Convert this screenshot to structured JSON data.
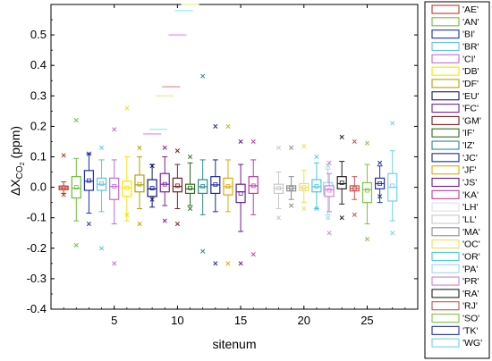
{
  "chart_data": {
    "type": "box",
    "xlabel": "sitenum",
    "ylabel_main": "ΔX",
    "ylabel_sub": "CO",
    "ylabel_subsub": "2",
    "ylabel_unit": " (ppm)",
    "xlim": [
      0,
      29
    ],
    "ylim": [
      -0.4,
      0.6
    ],
    "xticks": [
      5,
      10,
      15,
      20,
      25
    ],
    "yticks": [
      -0.4,
      -0.3,
      -0.2,
      -0.1,
      0.0,
      0.1,
      0.2,
      0.3,
      0.4,
      0.5
    ],
    "ytick_labels": [
      "-0.4",
      "-0.3",
      "-0.2",
      "-0.1",
      "0.0",
      "0.1",
      "0.2",
      "0.3",
      "0.4",
      "0.5"
    ],
    "series": [
      {
        "name": "'AE'",
        "color": "#c0392b",
        "site": 1,
        "q1": -0.008,
        "median": -0.002,
        "q3": 0.004,
        "wlow": -0.02,
        "whigh": 0.018,
        "mean": -0.001,
        "outliers": [
          0.105,
          -0.025
        ]
      },
      {
        "name": "'AN'",
        "color": "#6abf3b",
        "site": 2,
        "q1": -0.035,
        "median": -0.003,
        "q3": 0.035,
        "wlow": -0.11,
        "whigh": 0.095,
        "mean": 0.0,
        "outliers": [
          0.22,
          -0.19
        ]
      },
      {
        "name": "'BI'",
        "color": "#1f2fb5",
        "site": 3,
        "q1": -0.01,
        "median": 0.02,
        "q3": 0.055,
        "wlow": -0.085,
        "whigh": 0.11,
        "mean": 0.022,
        "outliers": [
          0.11,
          -0.12
        ]
      },
      {
        "name": "'BR'",
        "color": "#5fc3e8",
        "site": 4,
        "q1": -0.01,
        "median": 0.01,
        "q3": 0.03,
        "wlow": -0.08,
        "whigh": 0.09,
        "mean": 0.012,
        "outliers": [
          0.13,
          -0.2
        ]
      },
      {
        "name": "'CI'",
        "color": "#c86ad8",
        "site": 5,
        "q1": -0.04,
        "median": 0.003,
        "q3": 0.03,
        "wlow": -0.12,
        "whigh": 0.09,
        "mean": 0.003,
        "outliers": [
          0.19,
          -0.25
        ]
      },
      {
        "name": "'DB'",
        "color": "#f3e600",
        "site": 6,
        "q1": -0.03,
        "median": -0.002,
        "q3": 0.02,
        "wlow": -0.11,
        "whigh": 0.1,
        "mean": -0.002,
        "outliers": [
          0.26,
          -0.09
        ]
      },
      {
        "name": "'DF'",
        "color": "#b8a000",
        "site": 7,
        "q1": -0.015,
        "median": 0.008,
        "q3": 0.04,
        "wlow": -0.07,
        "whigh": 0.1,
        "mean": 0.01,
        "outliers": [
          0.13,
          -0.12
        ]
      },
      {
        "name": "'EU'",
        "color": "#111a7a",
        "site": 8,
        "q1": -0.03,
        "median": -0.005,
        "q3": 0.025,
        "wlow": -0.065,
        "whigh": 0.075,
        "mean": -0.003,
        "outliers": [
          0.07,
          -0.04
        ]
      },
      {
        "name": "'FC'",
        "color": "#7e1f9c",
        "site": 9,
        "q1": -0.015,
        "median": 0.01,
        "q3": 0.045,
        "wlow": -0.06,
        "whigh": 0.1,
        "mean": 0.01,
        "outliers": [
          0.13,
          -0.11
        ]
      },
      {
        "name": "'GM'",
        "color": "#7a1f1f",
        "site": 10,
        "q1": -0.015,
        "median": 0.003,
        "q3": 0.03,
        "wlow": -0.07,
        "whigh": 0.075,
        "mean": 0.005,
        "outliers": [
          0.12,
          -0.12
        ]
      },
      {
        "name": "'IF'",
        "color": "#2e6b1c",
        "site": 11,
        "q1": -0.02,
        "median": -0.005,
        "q3": 0.01,
        "wlow": -0.06,
        "whigh": 0.08,
        "mean": -0.002,
        "outliers": [
          0.1,
          -0.07
        ]
      },
      {
        "name": "'IZ'",
        "color": "#2a8a8a",
        "site": 12,
        "q1": -0.02,
        "median": 0.002,
        "q3": 0.025,
        "wlow": -0.09,
        "whigh": 0.09,
        "mean": 0.003,
        "outliers": [
          0.365,
          -0.21
        ]
      },
      {
        "name": "'JC'",
        "color": "#1a2a9a",
        "site": 13,
        "q1": -0.02,
        "median": 0.008,
        "q3": 0.035,
        "wlow": -0.08,
        "whigh": 0.09,
        "mean": 0.009,
        "outliers": [
          0.2,
          -0.25
        ]
      },
      {
        "name": "'JF'",
        "color": "#e6a700",
        "site": 14,
        "q1": -0.025,
        "median": 0.002,
        "q3": 0.03,
        "wlow": -0.08,
        "whigh": 0.09,
        "mean": 0.003,
        "outliers": [
          0.2,
          -0.25
        ]
      },
      {
        "name": "'JS'",
        "color": "#6a1a9a",
        "site": 15,
        "q1": -0.05,
        "median": -0.015,
        "q3": 0.01,
        "wlow": -0.145,
        "whigh": 0.075,
        "mean": -0.02,
        "outliers": [
          0.15,
          -0.25
        ]
      },
      {
        "name": "'KA'",
        "color": "#c03aa0",
        "site": 16,
        "q1": -0.02,
        "median": 0.005,
        "q3": 0.035,
        "wlow": -0.09,
        "whigh": 0.09,
        "mean": 0.005,
        "outliers": [
          0.15,
          -0.22
        ]
      },
      {
        "name": "'LH'",
        "color": "#e0e0e0",
        "site": 17,
        "q1": null,
        "median": null,
        "q3": null,
        "wlow": null,
        "whigh": null,
        "mean": null,
        "outliers": []
      },
      {
        "name": "'LL'",
        "color": "#c8c8c8",
        "site": 18,
        "q1": -0.02,
        "median": -0.003,
        "q3": 0.01,
        "wlow": -0.07,
        "whigh": 0.05,
        "mean": -0.003,
        "outliers": [
          0.13,
          -0.1
        ]
      },
      {
        "name": "'MA'",
        "color": "#8c8c8c",
        "site": 19,
        "q1": -0.012,
        "median": -0.003,
        "q3": 0.005,
        "wlow": -0.04,
        "whigh": 0.035,
        "mean": -0.003,
        "outliers": [
          0.13,
          -0.06
        ]
      },
      {
        "name": "'OC'",
        "color": "#f0e050",
        "site": 20,
        "q1": -0.01,
        "median": 0.0,
        "q3": 0.012,
        "wlow": -0.05,
        "whigh": 0.055,
        "mean": 0.0,
        "outliers": [
          0.135,
          -0.07
        ]
      },
      {
        "name": "'OR'",
        "color": "#4ac8e0",
        "site": 21,
        "q1": -0.015,
        "median": 0.002,
        "q3": 0.025,
        "wlow": -0.07,
        "whigh": 0.08,
        "mean": 0.003,
        "outliers": [
          0.1,
          -0.07
        ]
      },
      {
        "name": "'PA'",
        "color": "#a0d4f0",
        "site": 21.9,
        "q1": -0.025,
        "median": -0.005,
        "q3": 0.015,
        "wlow": -0.09,
        "whigh": 0.06,
        "mean": -0.005,
        "outliers": [
          0.07,
          -0.1
        ]
      },
      {
        "name": "'PR'",
        "color": "#d080d8",
        "site": 22,
        "q1": -0.03,
        "median": -0.008,
        "q3": 0.005,
        "wlow": -0.08,
        "whigh": 0.045,
        "mean": -0.01,
        "outliers": [
          0.08,
          -0.15
        ]
      },
      {
        "name": "'RA'",
        "color": "#222222",
        "site": 23,
        "q1": -0.005,
        "median": 0.012,
        "q3": 0.035,
        "wlow": -0.055,
        "whigh": 0.085,
        "mean": 0.015,
        "outliers": [
          0.165,
          -0.1
        ]
      },
      {
        "name": "'RJ'",
        "color": "#d05050",
        "site": 24,
        "q1": -0.012,
        "median": -0.004,
        "q3": 0.005,
        "wlow": -0.04,
        "whigh": 0.035,
        "mean": -0.004,
        "outliers": [
          0.15,
          -0.09
        ]
      },
      {
        "name": "'SO'",
        "color": "#7ac840",
        "site": 25,
        "q1": -0.05,
        "median": -0.008,
        "q3": 0.015,
        "wlow": -0.12,
        "whigh": 0.075,
        "mean": -0.01,
        "outliers": [
          0.145,
          -0.17
        ]
      },
      {
        "name": "'TK'",
        "color": "#2030b0",
        "site": 26,
        "q1": -0.005,
        "median": 0.012,
        "q3": 0.03,
        "wlow": -0.05,
        "whigh": 0.07,
        "mean": 0.012,
        "outliers": [
          0.08,
          -0.03
        ]
      },
      {
        "name": "'WG'",
        "color": "#70d0f0",
        "site": 27,
        "q1": -0.045,
        "median": 0.0,
        "q3": 0.045,
        "wlow": -0.11,
        "whigh": 0.12,
        "mean": 0.005,
        "outliers": [
          0.21,
          -0.15
        ]
      }
    ],
    "lh_diagonal_marks": [
      {
        "x": 8,
        "y": 0.175
      },
      {
        "x": 8.5,
        "y": 0.19
      },
      {
        "x": 9,
        "y": 0.3
      },
      {
        "x": 9.5,
        "y": 0.33
      },
      {
        "x": 10,
        "y": 0.5
      },
      {
        "x": 10.5,
        "y": 0.58
      },
      {
        "x": 11,
        "y": 0.6
      }
    ]
  }
}
